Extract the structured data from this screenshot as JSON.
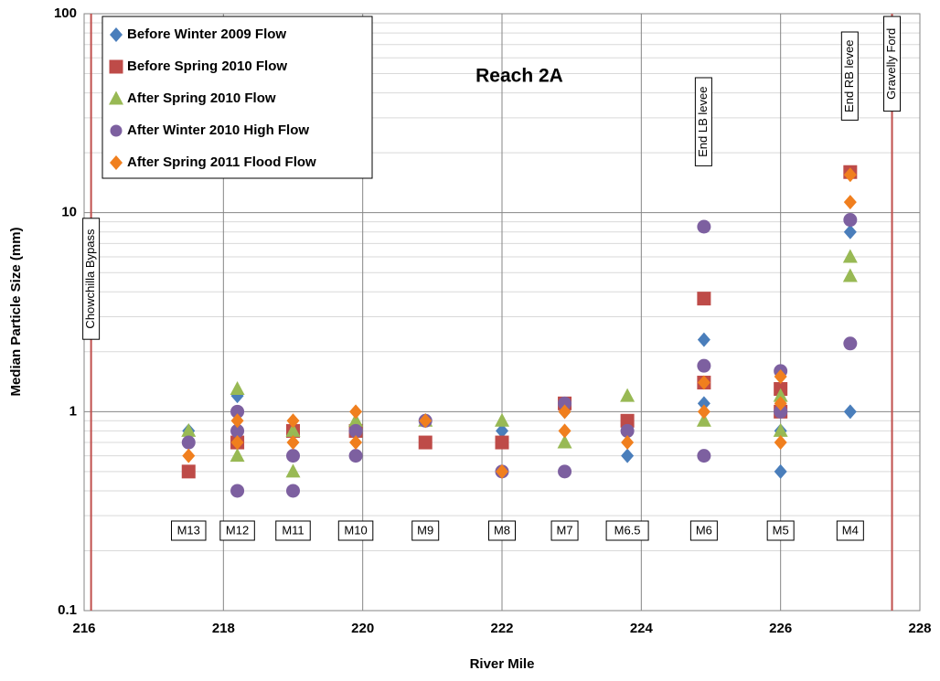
{
  "chart_data": {
    "type": "scatter",
    "title": "Reach 2A",
    "x_label": "River Mile",
    "y_label": "Median Particle Size (mm)",
    "log_y": true,
    "grid": true,
    "legend": "upper-left",
    "xlim": [
      216,
      228
    ],
    "xticks": [
      216,
      218,
      220,
      222,
      224,
      226,
      228
    ],
    "ylim": [
      0.1,
      100
    ],
    "yticks": [
      0.1,
      1,
      10,
      100
    ],
    "series": [
      {
        "name": "Before Winter 2009 Flow",
        "color": "#4a7ebb",
        "marker": "diamond",
        "x": [
          217.5,
          218.2,
          219,
          219.9,
          220.9,
          222,
          222,
          222.9,
          223.8,
          224.9,
          224.9,
          226,
          226,
          227,
          227
        ],
        "values": [
          0.8,
          1.2,
          0.8,
          0.8,
          0.9,
          0.8,
          0.5,
          1.0,
          0.6,
          2.3,
          1.1,
          0.8,
          0.5,
          8,
          1.0
        ]
      },
      {
        "name": "Before Spring 2010 Flow",
        "color": "#be4b48",
        "marker": "square",
        "x": [
          217.5,
          218.2,
          219,
          219.9,
          220.9,
          222,
          222.9,
          223.8,
          224.9,
          224.9,
          226,
          226,
          227
        ],
        "values": [
          0.5,
          0.7,
          0.8,
          0.8,
          0.7,
          0.7,
          1.1,
          0.9,
          3.7,
          1.4,
          1.3,
          1.0,
          16
        ]
      },
      {
        "name": "After Spring 2010 Flow",
        "color": "#98b954",
        "marker": "triangle",
        "x": [
          217.5,
          218.2,
          218.2,
          219,
          219,
          219.9,
          220.9,
          222,
          222.9,
          223.8,
          224.9,
          226,
          226,
          227,
          227
        ],
        "values": [
          0.8,
          1.3,
          0.6,
          0.5,
          0.8,
          0.9,
          0.9,
          0.9,
          0.7,
          1.2,
          0.9,
          0.8,
          1.2,
          6,
          4.8
        ]
      },
      {
        "name": "After Winter 2010 High Flow",
        "color": "#7d60a0",
        "marker": "circle",
        "x": [
          217.5,
          218.2,
          218.2,
          218.2,
          219,
          219,
          219.9,
          219.9,
          220.9,
          222,
          222.9,
          222.9,
          223.8,
          224.9,
          224.9,
          224.9,
          226,
          226,
          227,
          227
        ],
        "values": [
          0.7,
          1.0,
          0.8,
          0.4,
          0.6,
          0.4,
          0.6,
          0.8,
          0.9,
          0.5,
          0.5,
          1.1,
          0.8,
          8.5,
          1.7,
          0.6,
          1.6,
          1.0,
          9.2,
          2.2
        ]
      },
      {
        "name": "After Spring 2011 Flood Flow",
        "color": "#f07f1e",
        "marker": "diamond",
        "x": [
          217.5,
          218.2,
          218.2,
          219,
          219,
          219.9,
          219.9,
          220.9,
          222,
          222.9,
          222.9,
          223.8,
          224.9,
          224.9,
          226,
          226,
          226,
          227,
          227
        ],
        "values": [
          0.6,
          0.9,
          0.7,
          0.9,
          0.7,
          1.0,
          0.7,
          0.9,
          0.5,
          1.0,
          0.8,
          0.7,
          1.4,
          1.0,
          1.5,
          1.1,
          0.7,
          15.5,
          11.3
        ]
      }
    ],
    "boundaries": [
      {
        "label": "Chowchilla Bypass",
        "x": 216.1,
        "color": "#c0504d"
      },
      {
        "label": "Gravelly Ford",
        "x": 227.6,
        "color": "#c0504d"
      }
    ],
    "levees": [
      {
        "label": "End LB levee",
        "x": 224.9
      },
      {
        "label": "End RB levee",
        "x": 227
      }
    ],
    "stations": [
      {
        "label": "M13",
        "x": 217.5
      },
      {
        "label": "M12",
        "x": 218.2
      },
      {
        "label": "M11",
        "x": 219
      },
      {
        "label": "M10",
        "x": 219.9
      },
      {
        "label": "M9",
        "x": 220.9
      },
      {
        "label": "M8",
        "x": 222
      },
      {
        "label": "M7",
        "x": 222.9
      },
      {
        "label": "M6.5",
        "x": 223.8
      },
      {
        "label": "M6",
        "x": 224.9
      },
      {
        "label": "M5",
        "x": 226
      },
      {
        "label": "M4",
        "x": 227
      }
    ]
  }
}
